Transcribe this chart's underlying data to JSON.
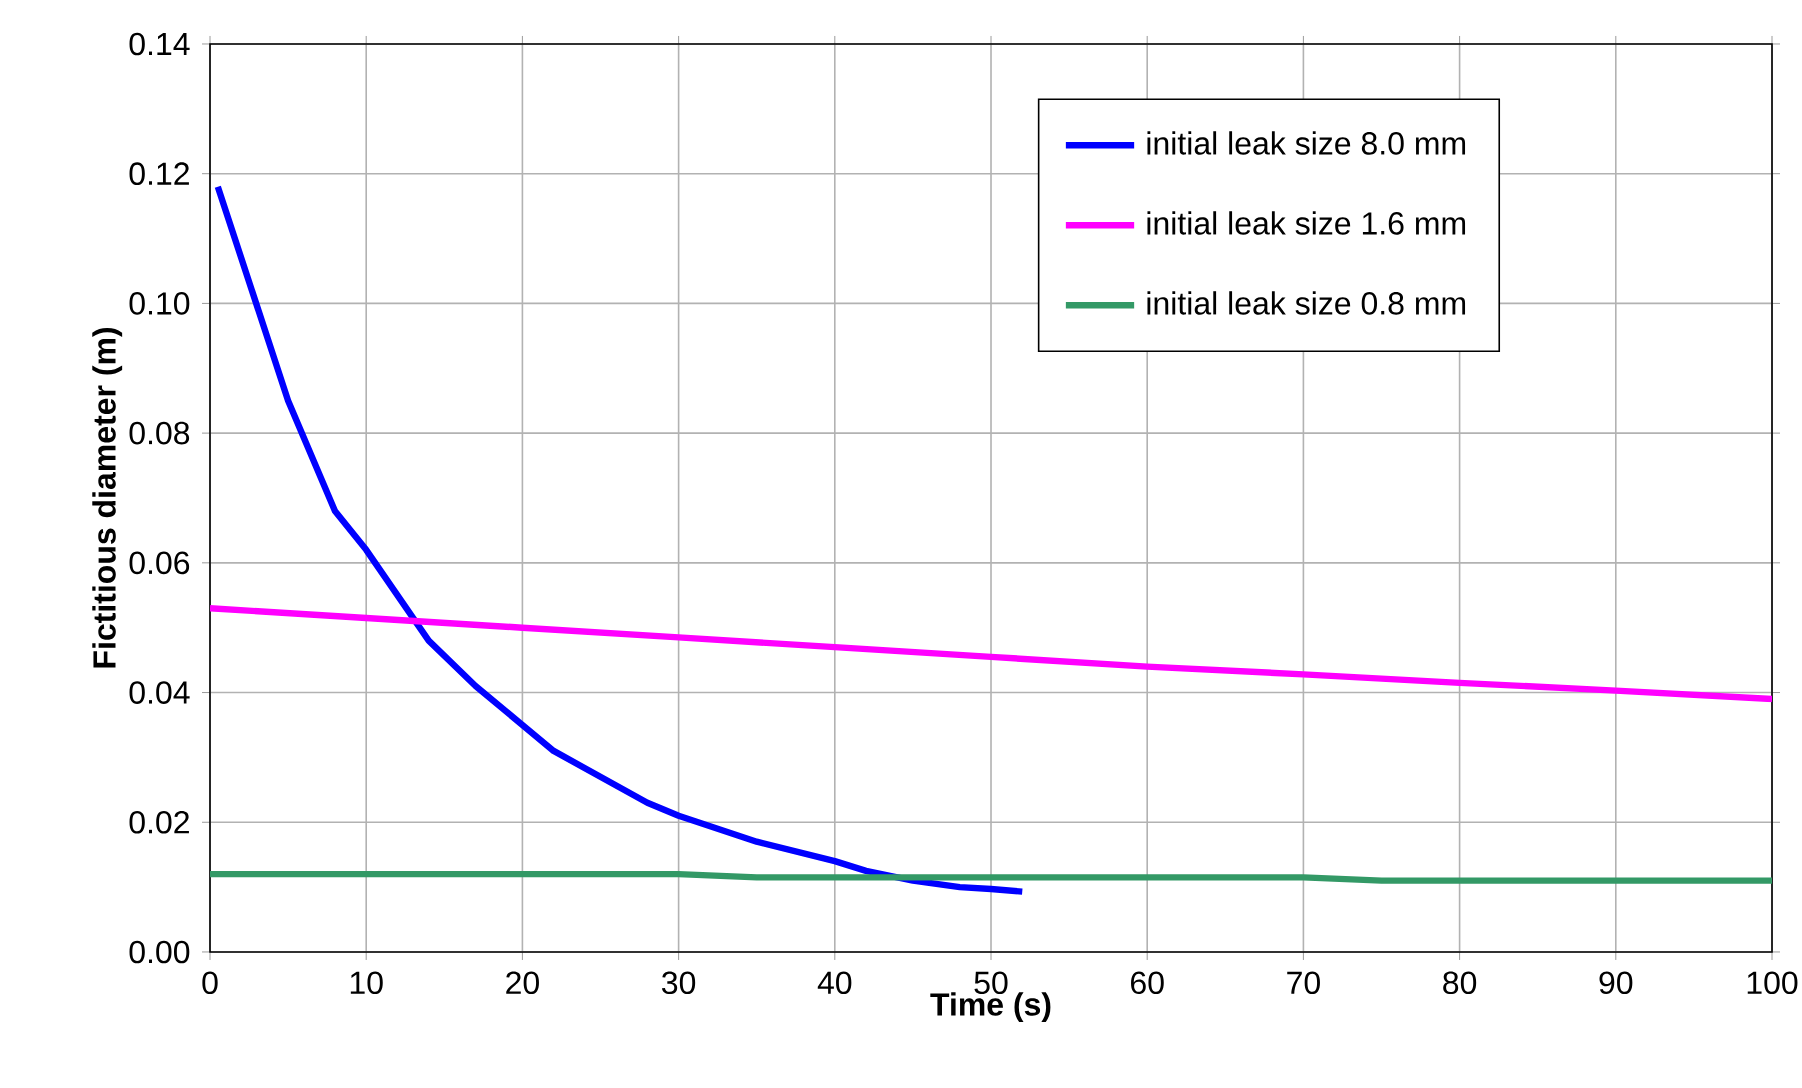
{
  "chart_data": {
    "type": "line",
    "xlabel": "Time (s)",
    "ylabel": "Fictitious diameter (m)",
    "xlim": [
      0,
      100
    ],
    "ylim": [
      0,
      0.14
    ],
    "xticks": [
      0,
      10,
      20,
      30,
      40,
      50,
      60,
      70,
      80,
      90,
      100
    ],
    "yticks": [
      {
        "value": 0,
        "label": "0.00"
      },
      {
        "value": 0.02,
        "label": "0.02"
      },
      {
        "value": 0.04,
        "label": "0.04"
      },
      {
        "value": 0.06,
        "label": "0.06"
      },
      {
        "value": 0.08,
        "label": "0.08"
      },
      {
        "value": 0.1,
        "label": "0.10"
      },
      {
        "value": 0.12,
        "label": "0.12"
      },
      {
        "value": 0.14,
        "label": "0.14"
      }
    ],
    "grid": true,
    "legend": "top right",
    "marker": "none",
    "line_style": "solid",
    "series": [
      {
        "name": "initial leak size 8.0 mm",
        "color": "#0000ff",
        "x": [
          0.5,
          2,
          5,
          8,
          10,
          12,
          14,
          17,
          20,
          22,
          25,
          28,
          30,
          35,
          40,
          42,
          45,
          48,
          50,
          52
        ],
        "values": [
          0.118,
          0.107,
          0.085,
          0.068,
          0.062,
          0.055,
          0.048,
          0.041,
          0.035,
          0.031,
          0.027,
          0.023,
          0.021,
          0.017,
          0.014,
          0.0125,
          0.011,
          0.01,
          0.0097,
          0.0093
        ]
      },
      {
        "name": "initial leak size 1.6 mm",
        "color": "#ff00ff",
        "x": [
          0,
          10,
          20,
          30,
          40,
          50,
          60,
          70,
          80,
          90,
          100
        ],
        "values": [
          0.053,
          0.0515,
          0.05,
          0.0485,
          0.047,
          0.0455,
          0.044,
          0.0428,
          0.0415,
          0.0403,
          0.039
        ]
      },
      {
        "name": "initial leak size 0.8 mm",
        "color": "#339966",
        "x": [
          0,
          30,
          35,
          70,
          75,
          100
        ],
        "values": [
          0.012,
          0.012,
          0.0115,
          0.0115,
          0.011,
          0.011
        ]
      }
    ]
  }
}
